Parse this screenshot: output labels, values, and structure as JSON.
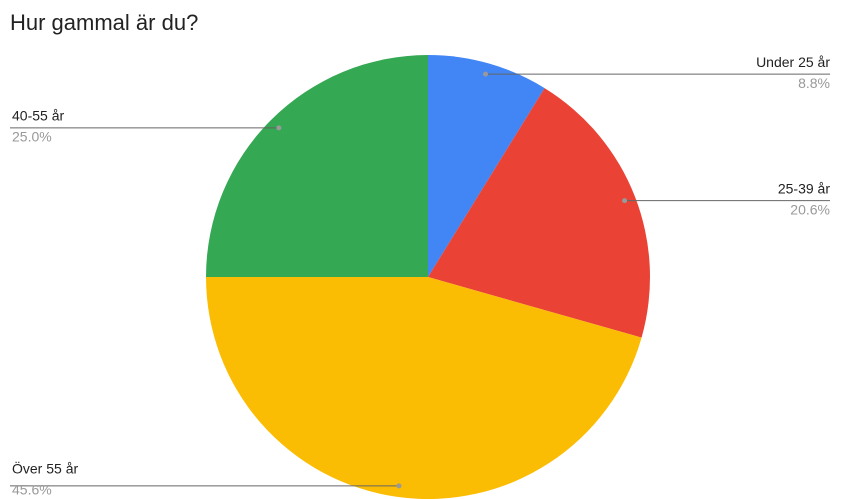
{
  "chart_data": {
    "type": "pie",
    "title": "Hur gammal är du?",
    "categories": [
      "Under 25 år",
      "25-39 år",
      "Över 55 år",
      "40-55 år"
    ],
    "values": [
      8.8,
      20.6,
      45.6,
      25.0
    ],
    "value_labels": [
      "8.8%",
      "20.6%",
      "45.6%",
      "25.0%"
    ],
    "colors": [
      "#4285f4",
      "#ea4335",
      "#fbbc04",
      "#34a853"
    ]
  }
}
